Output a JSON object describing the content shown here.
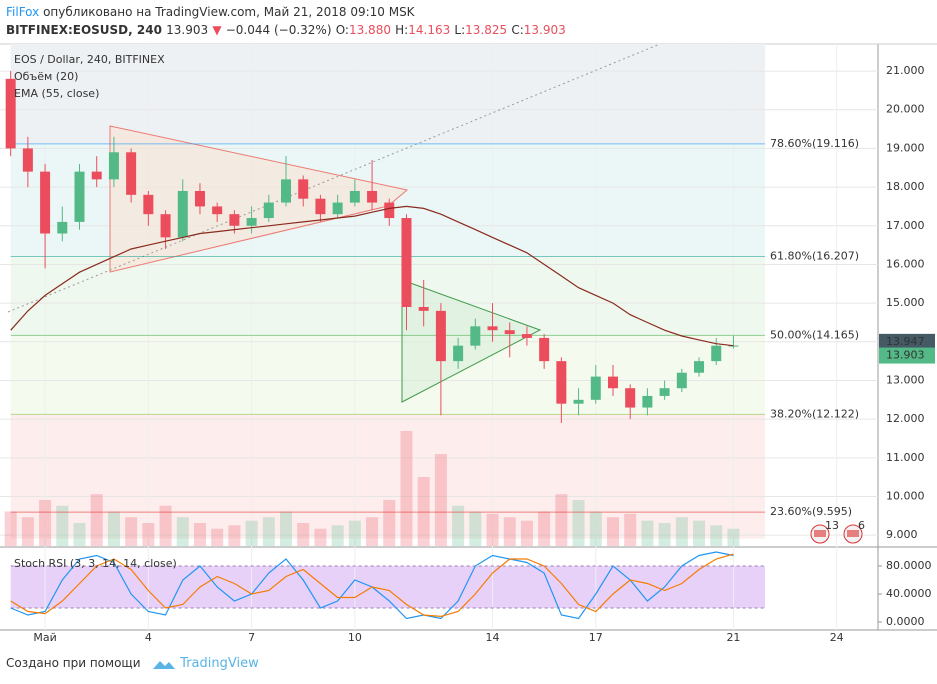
{
  "header": {
    "author": "FilFox",
    "published": "опубликовано на TradingView.com, Май 21, 2018 09:10 MSK",
    "symbol": "BITFINEX:EOSUSD, 240",
    "last": "13.903",
    "arrow": "▼",
    "change": "−0.044 (−0.32%)",
    "o_label": "O:",
    "o": "13.880",
    "h_label": "H:",
    "h": "14.163",
    "l_label": "L:",
    "l": "13.825",
    "c_label": "C:",
    "c": "13.903"
  },
  "footer": {
    "made_with": "Создано при помощи",
    "brand": "TradingView"
  },
  "badges": [
    "13",
    "6"
  ],
  "chart_data": {
    "type": "candlestick",
    "title": "EOS / Dollar, 240, BITFINEX",
    "up_color": "#53b987",
    "down_color": "#eb4d5c",
    "x": [
      0,
      0.5,
      1,
      1.5,
      2,
      2.5,
      3,
      3.5,
      4,
      4.5,
      5,
      5.5,
      6,
      6.5,
      7,
      7.5,
      8,
      8.5,
      9,
      9.5,
      10,
      10.5,
      11,
      11.5,
      12,
      12.5,
      13,
      13.5,
      14,
      14.5,
      15,
      15.5,
      16,
      16.5,
      17,
      17.5,
      18,
      18.5,
      19,
      19.5,
      20,
      20.5,
      21
    ],
    "open": [
      20.8,
      19.0,
      18.4,
      16.8,
      17.1,
      18.4,
      18.2,
      18.9,
      17.8,
      17.3,
      16.7,
      17.9,
      17.5,
      17.3,
      17.0,
      17.2,
      17.6,
      18.2,
      17.7,
      17.3,
      17.6,
      17.9,
      17.6,
      17.2,
      14.9,
      14.8,
      13.5,
      13.9,
      14.4,
      14.3,
      14.2,
      14.1,
      13.5,
      12.4,
      12.5,
      13.1,
      12.8,
      12.3,
      12.6,
      12.8,
      13.2,
      13.5,
      13.88
    ],
    "high": [
      21.0,
      19.3,
      18.6,
      17.5,
      18.6,
      18.8,
      19.3,
      19.0,
      17.9,
      17.4,
      18.2,
      18.1,
      17.6,
      17.4,
      17.5,
      17.8,
      18.8,
      18.3,
      17.8,
      17.8,
      18.2,
      18.7,
      17.7,
      17.3,
      15.6,
      15.0,
      14.1,
      14.6,
      15.0,
      14.5,
      14.4,
      14.2,
      13.6,
      12.8,
      13.4,
      13.4,
      12.9,
      12.8,
      13.0,
      13.3,
      13.6,
      14.1,
      14.163
    ],
    "low": [
      18.8,
      18.0,
      15.9,
      16.6,
      16.9,
      18.0,
      18.0,
      17.6,
      17.0,
      16.4,
      16.6,
      17.3,
      17.1,
      16.8,
      16.8,
      17.1,
      17.5,
      17.5,
      17.1,
      17.2,
      17.5,
      17.4,
      17.0,
      14.3,
      14.4,
      12.1,
      13.3,
      13.8,
      14.0,
      13.6,
      13.9,
      13.3,
      11.9,
      12.1,
      12.4,
      12.6,
      12.0,
      12.1,
      12.5,
      12.7,
      13.1,
      13.4,
      13.825
    ],
    "close": [
      19.0,
      18.4,
      16.8,
      17.1,
      18.4,
      18.2,
      18.9,
      17.8,
      17.3,
      16.7,
      17.9,
      17.5,
      17.3,
      17.0,
      17.2,
      17.6,
      18.2,
      17.7,
      17.3,
      17.6,
      17.9,
      17.6,
      17.2,
      14.9,
      14.8,
      13.5,
      13.9,
      14.4,
      14.3,
      14.2,
      14.1,
      13.5,
      12.4,
      12.5,
      13.1,
      12.8,
      12.3,
      12.6,
      12.8,
      13.2,
      13.5,
      13.9,
      13.903
    ],
    "xlim": [
      -0.31,
      25.2
    ],
    "xticks": [
      {
        "value": 1,
        "label": "Май"
      },
      4,
      7,
      10,
      14,
      17,
      21,
      24
    ],
    "ylim": [
      8.72,
      21.7
    ],
    "yticks": [
      {
        "value": 9,
        "label": "9.000"
      },
      {
        "value": 10,
        "label": "10.000"
      },
      {
        "value": 11,
        "label": "11.000"
      },
      {
        "value": 12,
        "label": "12.000"
      },
      {
        "value": 13,
        "label": "13.000"
      },
      {
        "value": 14,
        "label": "14.000"
      },
      {
        "value": 15,
        "label": "15.000"
      },
      {
        "value": 16,
        "label": "16.000"
      },
      {
        "value": 17,
        "label": "17.000"
      },
      {
        "value": 18,
        "label": "18.000"
      },
      {
        "value": 19,
        "label": "19.000"
      },
      {
        "value": 20,
        "label": "20.000"
      },
      {
        "value": 21,
        "label": "21.000"
      }
    ],
    "volume": {
      "name": "Объём (20)",
      "values": [
        30,
        25,
        40,
        35,
        20,
        45,
        30,
        25,
        20,
        35,
        25,
        20,
        15,
        18,
        22,
        25,
        30,
        20,
        15,
        18,
        22,
        25,
        40,
        100,
        60,
        80,
        35,
        30,
        28,
        25,
        22,
        30,
        45,
        40,
        30,
        25,
        28,
        22,
        20,
        25,
        22,
        18,
        15
      ]
    },
    "ema": {
      "name": "EMA (55, close)",
      "color": "#8b2a1e",
      "values": [
        14.3,
        14.8,
        15.2,
        15.5,
        15.8,
        16.0,
        16.2,
        16.4,
        16.5,
        16.6,
        16.7,
        16.8,
        16.85,
        16.9,
        16.95,
        17.0,
        17.05,
        17.1,
        17.15,
        17.2,
        17.25,
        17.35,
        17.45,
        17.5,
        17.45,
        17.3,
        17.1,
        16.9,
        16.7,
        16.5,
        16.3,
        16.0,
        15.7,
        15.4,
        15.2,
        15.0,
        14.7,
        14.5,
        14.3,
        14.15,
        14.05,
        13.95,
        13.9
      ]
    },
    "fib": [
      {
        "value": 19.116,
        "label": "78.60%(19.116)",
        "color": "#2196f3"
      },
      {
        "value": 16.207,
        "label": "61.80%(16.207)",
        "color": "#26a69a"
      },
      {
        "value": 14.165,
        "label": "50.00%(14.165)",
        "color": "#4caf50"
      },
      {
        "value": 12.122,
        "label": "38.20%(12.122)",
        "color": "#8bc34a"
      },
      {
        "value": 9.595,
        "label": "23.60%(9.595)",
        "color": "#e53935"
      }
    ],
    "price_labels": [
      {
        "value": 13.947,
        "label": "13.947",
        "color": "#455a64"
      },
      {
        "value": 13.903,
        "label": "13.903",
        "color": "#53b987"
      }
    ],
    "stoch": {
      "name": "Stoch RSI (3, 3, 14, 14, close)",
      "band": [
        20,
        80
      ],
      "band_color": "#d9b3f5",
      "ylim": [
        -11.4,
        105.7
      ],
      "yticks": [
        {
          "value": 0,
          "label": "0.0000"
        },
        {
          "value": 40,
          "label": "40.0000"
        },
        {
          "value": 80,
          "label": "80.0000"
        }
      ],
      "series": [
        {
          "color": "#2196f3",
          "values": [
            20,
            10,
            15,
            60,
            90,
            95,
            85,
            40,
            15,
            10,
            60,
            80,
            50,
            30,
            40,
            70,
            90,
            60,
            20,
            30,
            60,
            50,
            30,
            5,
            10,
            5,
            30,
            80,
            95,
            90,
            85,
            70,
            10,
            5,
            40,
            80,
            60,
            30,
            50,
            80,
            95,
            100,
            95
          ]
        },
        {
          "color": "#f57c00",
          "values": [
            30,
            15,
            12,
            30,
            55,
            80,
            90,
            75,
            45,
            20,
            25,
            50,
            65,
            55,
            40,
            45,
            65,
            75,
            55,
            35,
            35,
            50,
            45,
            25,
            10,
            8,
            15,
            40,
            70,
            90,
            90,
            80,
            55,
            25,
            15,
            40,
            60,
            55,
            45,
            55,
            75,
            90,
            97
          ]
        }
      ]
    }
  }
}
